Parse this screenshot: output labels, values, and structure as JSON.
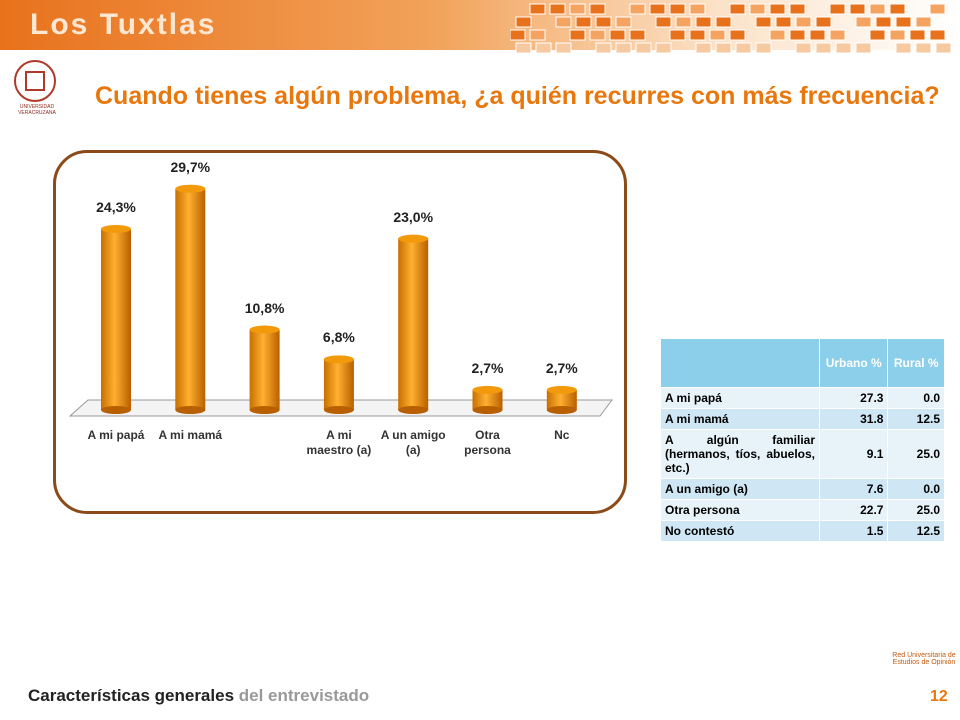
{
  "header": {
    "title": "Los Tuxtlas",
    "logo_text": "UNIVERSIDAD VERACRUZANA"
  },
  "slide_title": "Cuando tienes algún problema, ¿a quién recurres con más frecuencia?",
  "chart_data": {
    "type": "bar",
    "categories": [
      "A mi papá",
      "A mi mamá",
      null,
      "A mi maestro (a)",
      "A un amigo (a)",
      "Otra persona",
      "Nc"
    ],
    "values": [
      24.3,
      29.7,
      10.8,
      6.8,
      23.0,
      2.7,
      2.7
    ],
    "value_labels": [
      "24,3%",
      "29,7%",
      "10,8%",
      "6,8%",
      "23,0%",
      "2,7%",
      "2,7%"
    ],
    "color": "#f39a0c"
  },
  "table": {
    "header": [
      "Urbano %",
      "Rural %"
    ],
    "rows": [
      [
        "A mi papá",
        "27.3",
        "0.0"
      ],
      [
        "A mi mamá",
        "31.8",
        "12.5"
      ],
      [
        "A algún familiar (hermanos, tíos, abuelos, etc.)",
        "9.1",
        "25.0"
      ],
      [
        "A un amigo (a)",
        "7.6",
        "0.0"
      ],
      [
        "Otra persona",
        "22.7",
        "25.0"
      ],
      [
        "No contestó",
        "1.5",
        "12.5"
      ]
    ]
  },
  "footer": {
    "title_bold": "Características generales",
    "title_rest": "del entrevistado",
    "page": "12",
    "network": "Red Universitaria de Estudios de Opinión"
  }
}
